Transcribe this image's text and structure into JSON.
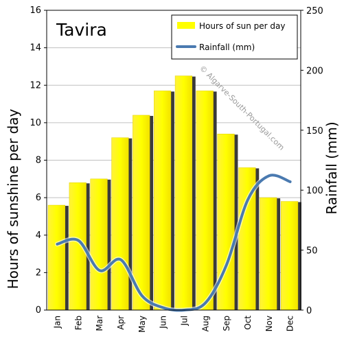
{
  "chart_data": {
    "type": "bar",
    "title": "Tavira",
    "watermark": "© Algarve-South-Portugal.com",
    "categories": [
      "Jan",
      "Feb",
      "Mar",
      "Apr",
      "May",
      "Jun",
      "Jul",
      "Aug",
      "Sep",
      "Oct",
      "Nov",
      "Dec"
    ],
    "series": [
      {
        "name": "Hours of sun per day",
        "type": "bar",
        "axis": "left",
        "values": [
          5.6,
          6.8,
          7.0,
          9.2,
          10.4,
          11.7,
          12.5,
          11.7,
          9.4,
          7.6,
          6.0,
          5.8
        ]
      },
      {
        "name": "Rainfall (mm)",
        "type": "line",
        "axis": "right",
        "values": [
          55,
          58,
          33,
          42,
          12,
          2,
          0,
          6,
          38,
          92,
          112,
          107
        ]
      }
    ],
    "ylabel": "Hours of sunshine per day",
    "ylim": [
      0,
      16
    ],
    "yticks": [
      0,
      2,
      4,
      6,
      8,
      10,
      12,
      14,
      16
    ],
    "y2label": "Rainfall (mm)",
    "y2lim": [
      0,
      250
    ],
    "y2ticks": [
      0,
      50,
      100,
      150,
      200,
      250
    ],
    "grid": true,
    "legend": "top-right",
    "colors": {
      "bar": "#ffff00",
      "bar_shadow": "#3a3a3a",
      "line": "#4a7ab0",
      "grid": "#c0c0c0"
    }
  }
}
